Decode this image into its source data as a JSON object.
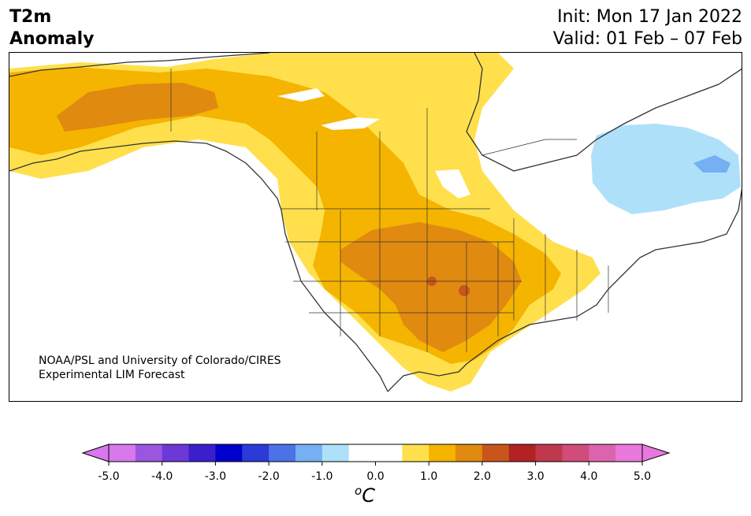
{
  "title": {
    "line1": "T2m",
    "line2": "Anomaly",
    "init": "Init: Mon 17 Jan 2022",
    "valid": "Valid: 01 Feb – 07 Feb"
  },
  "credit": {
    "line1": "NOAA/PSL and University of Colorado/CIRES",
    "line2": "Experimental LIM Forecast"
  },
  "colorbar": {
    "unit_label": "C",
    "unit_superscript": "o",
    "ticks": [
      "-5.0",
      "-4.0",
      "-3.0",
      "-2.0",
      "-1.0",
      "0.0",
      "1.0",
      "2.0",
      "3.0",
      "4.0",
      "5.0"
    ],
    "colors": [
      "#d878ec",
      "#9b56e0",
      "#6d38d8",
      "#3a1fcc",
      "#0000cc",
      "#2c3ad8",
      "#4b72e6",
      "#74b0f2",
      "#aee0fa",
      "#ffffff",
      "#ffffff",
      "#ffe04c",
      "#f4b400",
      "#e08a10",
      "#c8561c",
      "#b22222",
      "#c0384c",
      "#d04c7a",
      "#dc64ae",
      "#e878dc"
    ],
    "under_color": "#d878ec",
    "over_color": "#e878dc"
  },
  "map_colors": {
    "land": "#ffffff",
    "anom_0_5_to_1": "#ffe04c",
    "anom_1_to_1_5": "#f4b400",
    "anom_1_5_to_2": "#e08a10",
    "anom_2_to_2_5": "#c8561c",
    "anom_neg_0_5_to_neg_1": "#aee0fa",
    "anom_neg_1_to_neg_1_5": "#74b0f2",
    "coastline": "#333333"
  }
}
